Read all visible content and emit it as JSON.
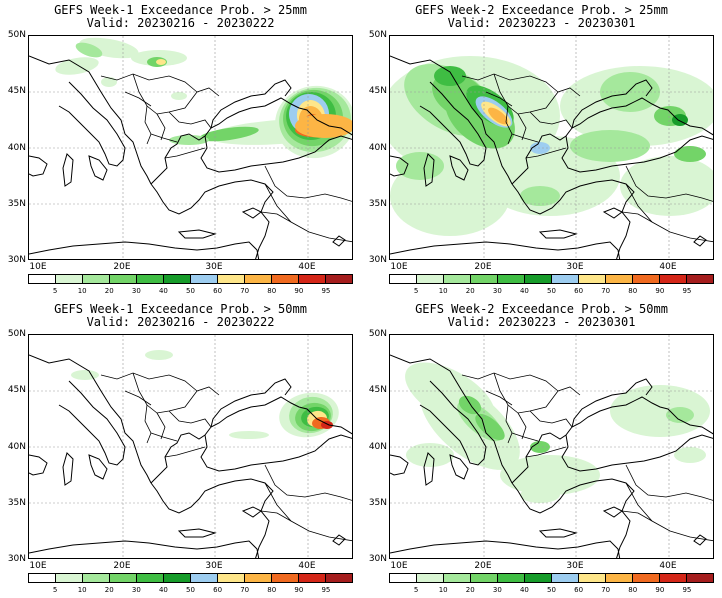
{
  "colorbar": {
    "labels": [
      "5",
      "10",
      "20",
      "30",
      "40",
      "50",
      "60",
      "70",
      "80",
      "90",
      "95"
    ],
    "colors": [
      "#ffffff",
      "#d9f5d3",
      "#a5e89c",
      "#73d468",
      "#3fbd43",
      "#179c2a",
      "#9dcdf0",
      "#fee68a",
      "#fcb545",
      "#f06a20",
      "#d42618",
      "#a51d1d"
    ]
  },
  "axes": {
    "lat_labels": [
      "50N",
      "45N",
      "40N",
      "35N",
      "30N"
    ],
    "lon_labels": [
      "10E",
      "20E",
      "30E",
      "40E"
    ]
  },
  "panels": [
    {
      "title": "GEFS Week-1 Exceedance Prob. > 25mm",
      "valid": "Valid: 20230216 - 20230222"
    },
    {
      "title": "GEFS Week-2 Exceedance Prob. > 25mm",
      "valid": "Valid: 20230223 - 20230301"
    },
    {
      "title": "GEFS Week-1 Exceedance Prob. > 50mm",
      "valid": "Valid: 20230216 - 20230222"
    },
    {
      "title": "GEFS Week-2 Exceedance Prob. > 50mm",
      "valid": "Valid: 20230223 - 20230301"
    }
  ]
}
